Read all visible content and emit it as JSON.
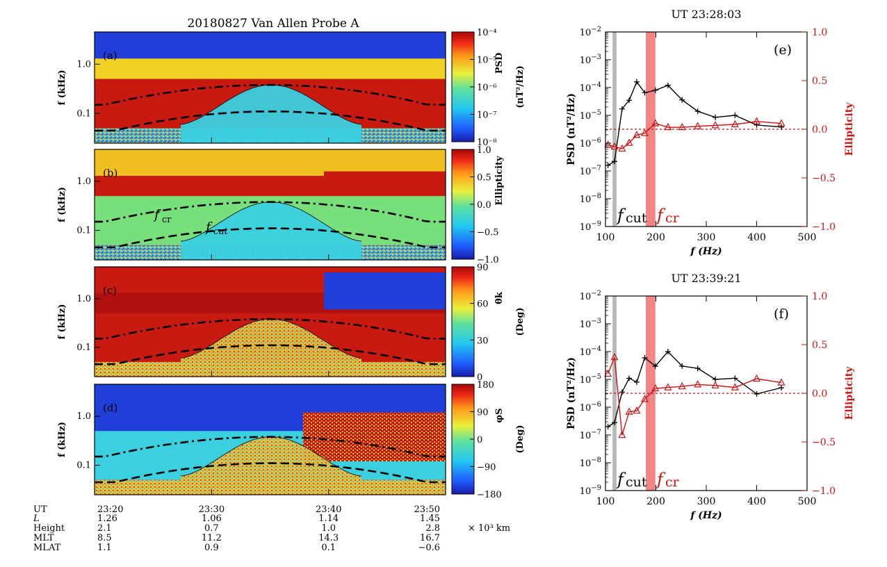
{
  "figure": {
    "title": "20180827   Van Allen Probe A",
    "ephemeris": {
      "row_labels": [
        "UT",
        "L",
        "Height",
        "MLT",
        "MLAT"
      ],
      "columns": [
        {
          "UT": "23:20",
          "L": "1.26",
          "Height": "2.1",
          "MLT": "8.5",
          "MLAT": "1.1"
        },
        {
          "UT": "23:30",
          "L": "1.06",
          "Height": "0.7",
          "MLT": "11.2",
          "MLAT": "0.9"
        },
        {
          "UT": "23:40",
          "L": "1.14",
          "Height": "1.0",
          "MLT": "14.3",
          "MLAT": "0.1"
        },
        {
          "UT": "23:50",
          "L": "1.45",
          "Height": "2.8",
          "MLT": "16.7",
          "MLAT": "−0.6"
        }
      ],
      "height_unit": "× 10³ km"
    }
  },
  "chart_data": [
    {
      "type": "heatmap",
      "panel": "(a)",
      "ylabel": "f (kHz)",
      "y_ticks": [
        "1.0",
        "0.1"
      ],
      "y_scale": "log",
      "ylim_khz": [
        0.025,
        4.5
      ],
      "x_range_ut": [
        "23:20",
        "23:50"
      ],
      "colorbar": {
        "label": "PSD",
        "unit": "(nT²/Hz)",
        "ticks": [
          "10⁻⁴",
          "10⁻⁵",
          "10⁻⁶",
          "10⁻⁷",
          "10⁻⁸"
        ],
        "colormap": "rainbow"
      },
      "annotations": [
        "(a)"
      ],
      "curves": {
        "dash_dot_khz": {
          "ut": [
            23.333,
            23.567,
            23.833
          ],
          "f": [
            0.24,
            0.38,
            0.17
          ]
        },
        "dashed_khz": {
          "ut": [
            23.333,
            23.567,
            23.833
          ],
          "f": [
            0.062,
            0.11,
            0.048
          ]
        }
      }
    },
    {
      "type": "heatmap",
      "panel": "(b)",
      "ylabel": "f (kHz)",
      "y_ticks": [
        "1.0",
        "0.1"
      ],
      "colorbar": {
        "label": "Ellipticity",
        "unit": "",
        "ticks": [
          "1.0",
          "0.5",
          "0.0",
          "−0.5",
          "−1.0"
        ],
        "colormap": "rainbow"
      },
      "annotations": [
        "(b)",
        "fcr",
        "fcut"
      ]
    },
    {
      "type": "heatmap",
      "panel": "(c)",
      "ylabel": "f (kHz)",
      "y_ticks": [
        "1.0",
        "0.1"
      ],
      "colorbar": {
        "label": "θk",
        "unit": "(Deg)",
        "ticks": [
          "90",
          "60",
          "30",
          "0"
        ],
        "colormap": "rainbow"
      },
      "annotations": [
        "(c)"
      ]
    },
    {
      "type": "heatmap",
      "panel": "(d)",
      "ylabel": "f (kHz)",
      "y_ticks": [
        "1.0",
        "0.1"
      ],
      "colorbar": {
        "label": "φS",
        "unit": "(Deg)",
        "ticks": [
          "180",
          "90",
          "0",
          "−90",
          "−180"
        ],
        "colormap": "rainbow"
      },
      "annotations": [
        "(d)"
      ]
    },
    {
      "type": "line",
      "panel": "(e)",
      "title": "UT   23:28:03",
      "xlabel": "f (Hz)",
      "ylabel_left": "PSD (nT²/Hz)",
      "ylabel_right": "Ellipticity",
      "xlim": [
        100,
        500
      ],
      "x_ticks": [
        100,
        200,
        300,
        400,
        500
      ],
      "ylim_left_log10": [
        -9,
        -2
      ],
      "ylim_right": [
        -1.0,
        1.0
      ],
      "y_ticks_right": [
        "1.0",
        "0.5",
        "0.0",
        "−0.5",
        "−1.0"
      ],
      "bands": [
        {
          "label": "fcut",
          "x_range": [
            114,
            122
          ],
          "color": "#b7b7b7"
        },
        {
          "label": "fcr",
          "x_range": [
            180,
            199
          ],
          "color": "#f48585"
        }
      ],
      "reference_line_right": 0.0,
      "series": [
        {
          "axis": "left",
          "color": "#000000",
          "marker": "+",
          "x": [
            105,
            118,
            133,
            147,
            162,
            178,
            199,
            224,
            252,
            283,
            318,
            357,
            400,
            449
          ],
          "y": [
            1.6e-07,
            2.2e-07,
            1.7e-05,
            3.5e-05,
            0.00016,
            6.5e-05,
            8e-05,
            0.00012,
            3.6e-05,
            1.4e-05,
            8.5e-06,
            1e-05,
            4.5e-06,
            3.8e-06
          ]
        },
        {
          "axis": "right",
          "color": "#cc1111",
          "marker": "triangle",
          "x": [
            105,
            118,
            133,
            147,
            162,
            178,
            199,
            224,
            252,
            283,
            318,
            357,
            400,
            449
          ],
          "y": [
            -0.16,
            -0.18,
            -0.2,
            -0.14,
            -0.06,
            -0.04,
            0.06,
            0.02,
            0.02,
            0.03,
            0.04,
            0.05,
            0.08,
            0.06
          ]
        }
      ]
    },
    {
      "type": "line",
      "panel": "(f)",
      "title": "UT   23:39:21",
      "xlabel": "f (Hz)",
      "ylabel_left": "PSD (nT²/Hz)",
      "ylabel_right": "Ellipticity",
      "xlim": [
        100,
        500
      ],
      "x_ticks": [
        100,
        200,
        300,
        400,
        500
      ],
      "ylim_left_log10": [
        -9,
        -2
      ],
      "ylim_right": [
        -1.0,
        1.0
      ],
      "y_ticks_right": [
        "1.0",
        "0.5",
        "0.0",
        "−0.5",
        "−1.0"
      ],
      "bands": [
        {
          "label": "fcut",
          "x_range": [
            114,
            122
          ],
          "color": "#b7b7b7"
        },
        {
          "label": "fcr",
          "x_range": [
            180,
            199
          ],
          "color": "#f48585"
        }
      ],
      "reference_line_right": 0.0,
      "series": [
        {
          "axis": "left",
          "color": "#000000",
          "marker": "+",
          "x": [
            105,
            118,
            133,
            147,
            162,
            178,
            199,
            224,
            252,
            283,
            318,
            357,
            400,
            449
          ],
          "y": [
            2e-07,
            2.8e-07,
            3.5e-06,
            1.1e-05,
            8e-06,
            6e-05,
            3e-05,
            0.0001,
            3e-05,
            2.5e-05,
            1e-05,
            1.1e-05,
            3e-06,
            5e-06
          ]
        },
        {
          "axis": "right",
          "color": "#cc1111",
          "marker": "triangle",
          "x": [
            105,
            118,
            133,
            147,
            162,
            178,
            199,
            224,
            252,
            283,
            318,
            357,
            400,
            449
          ],
          "y": [
            0.2,
            0.37,
            -0.43,
            -0.19,
            -0.18,
            -0.06,
            0.05,
            0.06,
            0.07,
            0.09,
            0.08,
            0.06,
            0.15,
            0.11
          ]
        }
      ]
    }
  ]
}
